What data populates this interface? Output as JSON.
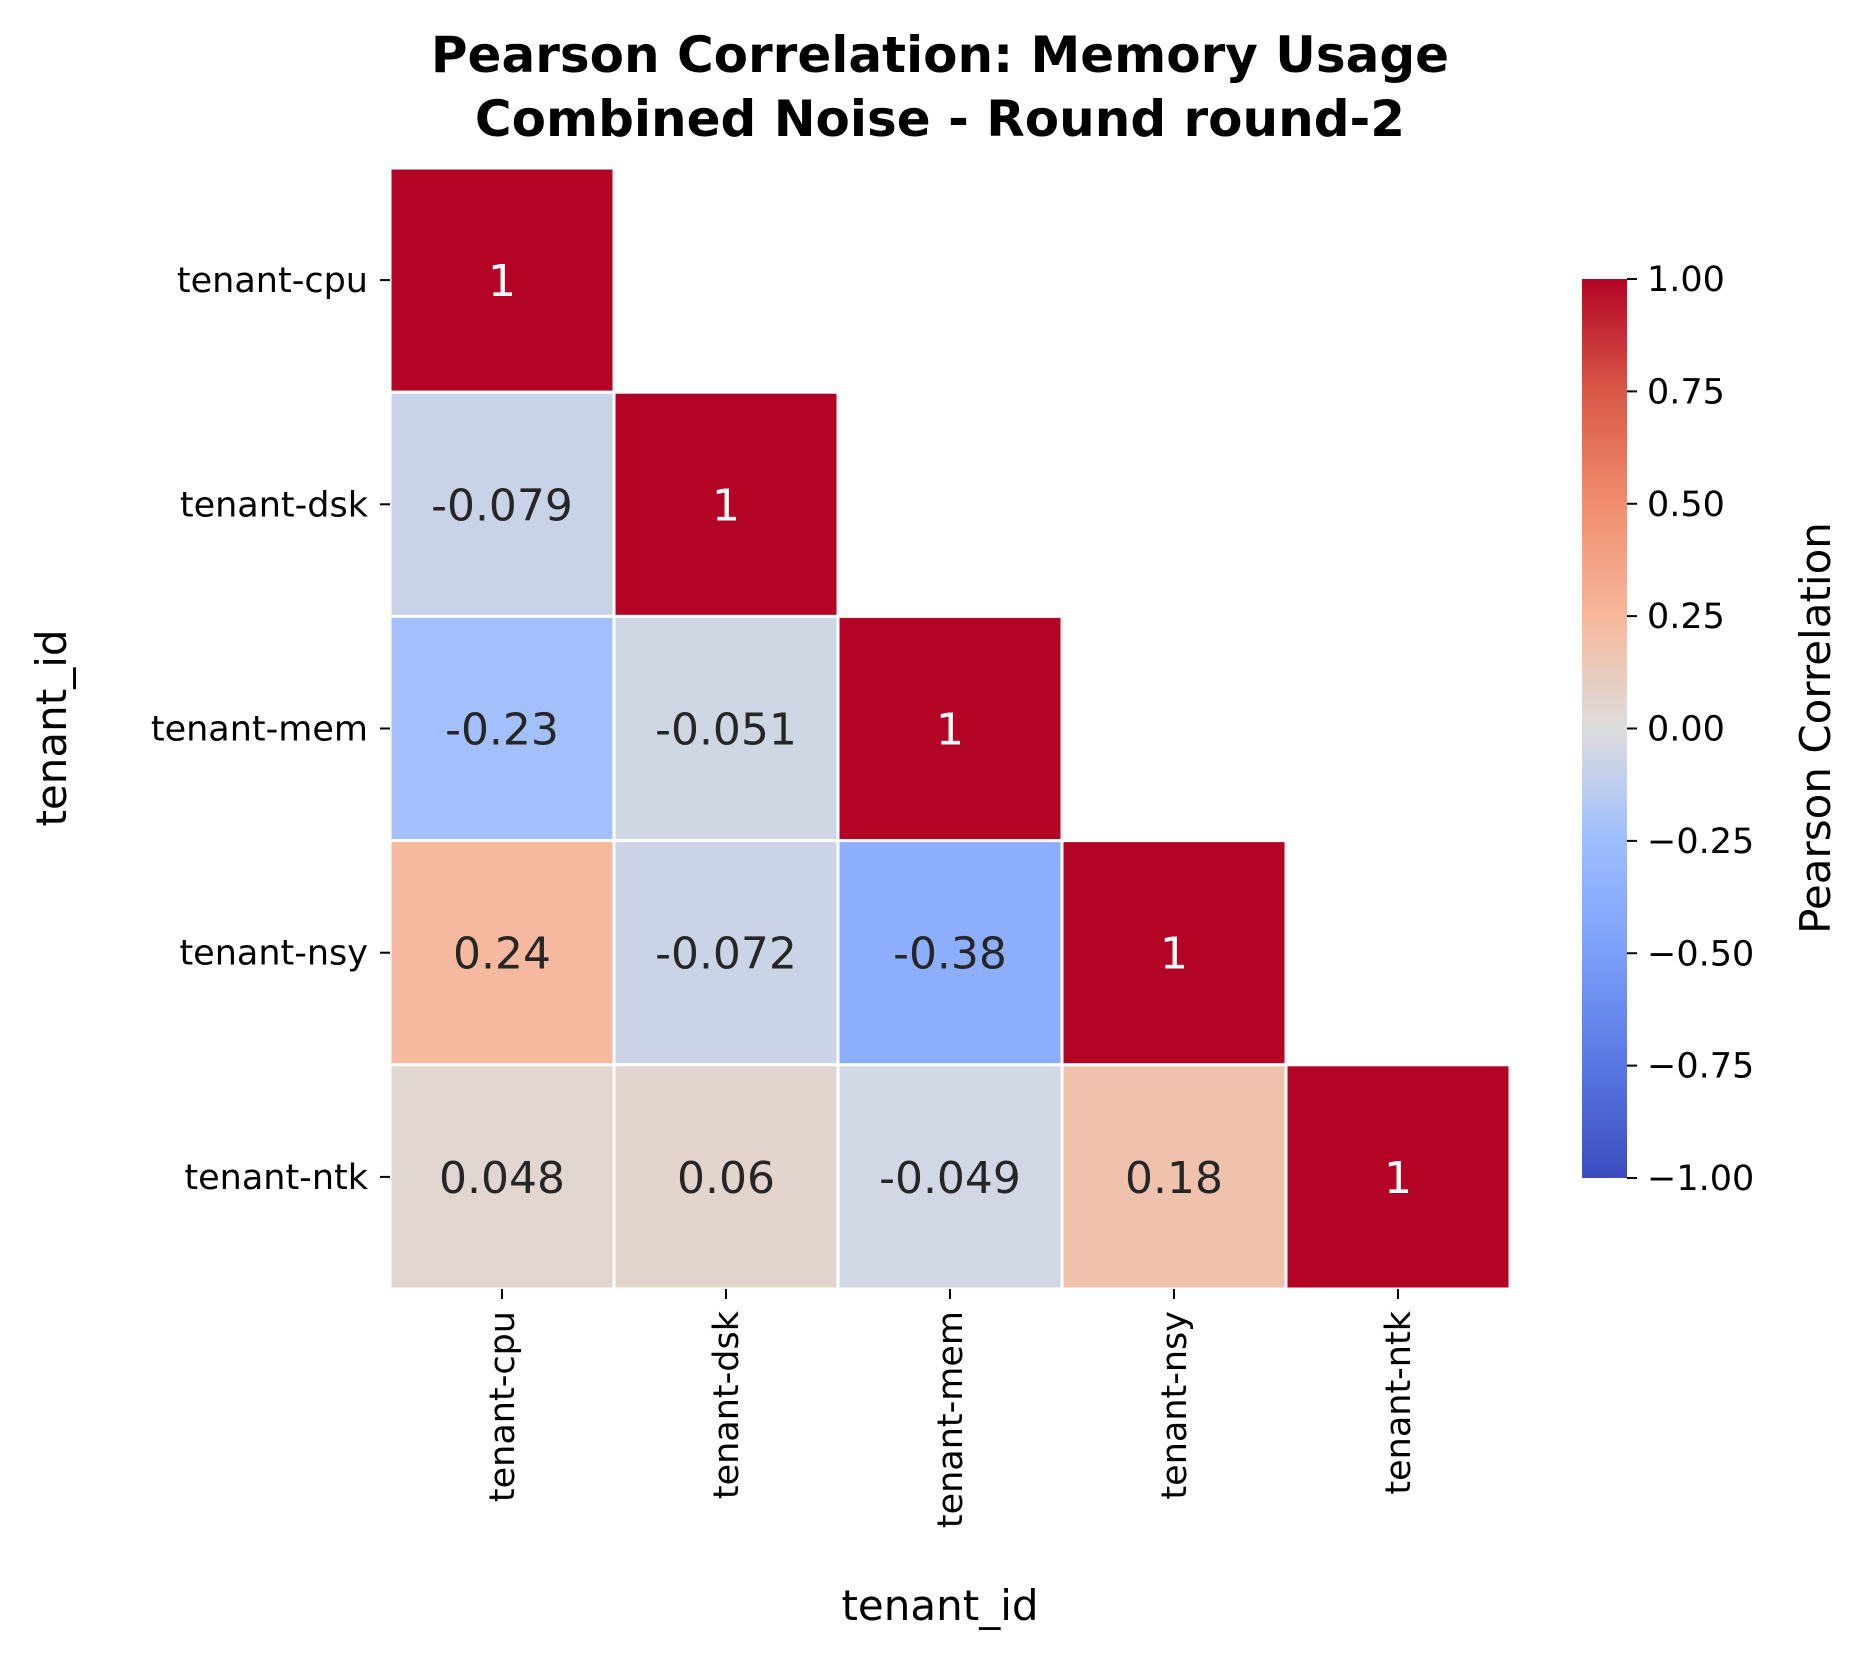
{
  "chart_data": {
    "type": "heatmap",
    "title_lines": [
      "Pearson Correlation: Memory Usage",
      "Combined Noise - Round round-2"
    ],
    "xlabel": "tenant_id",
    "ylabel": "tenant_id",
    "rows": [
      "tenant-cpu",
      "tenant-dsk",
      "tenant-mem",
      "tenant-nsy",
      "tenant-ntk"
    ],
    "columns": [
      "tenant-cpu",
      "tenant-dsk",
      "tenant-mem",
      "tenant-nsy",
      "tenant-ntk"
    ],
    "mask": "upper-triangle",
    "values": [
      [
        1,
        null,
        null,
        null,
        null
      ],
      [
        -0.079,
        1,
        null,
        null,
        null
      ],
      [
        -0.23,
        -0.051,
        1,
        null,
        null
      ],
      [
        0.24,
        -0.072,
        -0.38,
        1,
        null
      ],
      [
        0.048,
        0.06,
        -0.049,
        0.18,
        1
      ]
    ],
    "value_labels": [
      [
        "1",
        "",
        "",
        "",
        ""
      ],
      [
        "-0.079",
        "1",
        "",
        "",
        ""
      ],
      [
        "-0.23",
        "-0.051",
        "1",
        "",
        ""
      ],
      [
        "0.24",
        "-0.072",
        "-0.38",
        "1",
        ""
      ],
      [
        "0.048",
        "0.06",
        "-0.049",
        "0.18",
        "1"
      ]
    ],
    "colormap": "coolwarm",
    "vmin": -1,
    "vmax": 1,
    "colorbar": {
      "label": "Pearson Correlation",
      "ticks": [
        1.0,
        0.75,
        0.5,
        0.25,
        0.0,
        -0.25,
        -0.5,
        -0.75,
        -1.0
      ],
      "tick_labels": [
        "1.00",
        "0.75",
        "0.50",
        "0.25",
        "0.00",
        "−0.25",
        "−0.50",
        "−0.75",
        "−1.00"
      ]
    },
    "grid": false
  }
}
